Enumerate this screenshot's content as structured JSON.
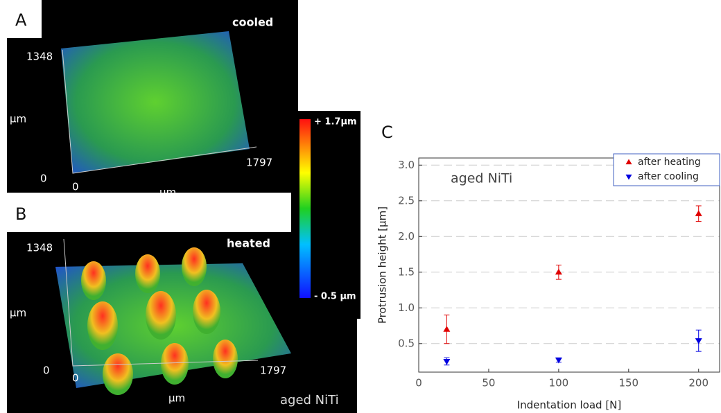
{
  "panel_a": {
    "label": "A",
    "state": "cooled",
    "y_max": "1348",
    "y_unit": "µm",
    "origin_y": "0",
    "origin_x": "0",
    "x_unit": "µm",
    "x_max": "1797"
  },
  "panel_b": {
    "label": "B",
    "state": "heated",
    "y_max": "1348",
    "y_unit": "µm",
    "origin_y": "0",
    "origin_x": "0",
    "x_unit": "µm",
    "x_max": "1797",
    "material": "aged NiTi"
  },
  "colorbar": {
    "max_label": "+ 1.7µm",
    "min_label": "- 0.5 µm"
  },
  "chart_data": {
    "type": "scatter",
    "panel_label": "C",
    "annotation": "aged NiTi",
    "x_label": "Indentation load [N]",
    "y_label": "Protrusion height [µm]",
    "xlim": [
      0,
      215
    ],
    "xticks": [
      0,
      50,
      100,
      150,
      200
    ],
    "ylim": [
      0.1,
      3.1
    ],
    "yticks": [
      {
        "value": 0.5,
        "label": "0.5"
      },
      {
        "value": 1,
        "label": "1.0"
      },
      {
        "value": 1.5,
        "label": "1.5"
      },
      {
        "value": 2,
        "label": "2.0"
      },
      {
        "value": 2.5,
        "label": "2.5"
      },
      {
        "value": 3,
        "label": "3.0"
      }
    ],
    "grid": true,
    "legend": "top-right",
    "series": [
      {
        "name": "after heating",
        "color": "#e00000",
        "marker": "triangle-up",
        "x": [
          20,
          100,
          200
        ],
        "values": [
          0.7,
          1.5,
          2.32
        ],
        "errors": [
          0.2,
          0.1,
          0.11
        ]
      },
      {
        "name": "after cooling",
        "color": "#0000e0",
        "marker": "triangle-down",
        "x": [
          20,
          100,
          200
        ],
        "values": [
          0.25,
          0.27,
          0.54
        ],
        "errors": [
          0.05,
          0.03,
          0.15
        ]
      }
    ]
  }
}
